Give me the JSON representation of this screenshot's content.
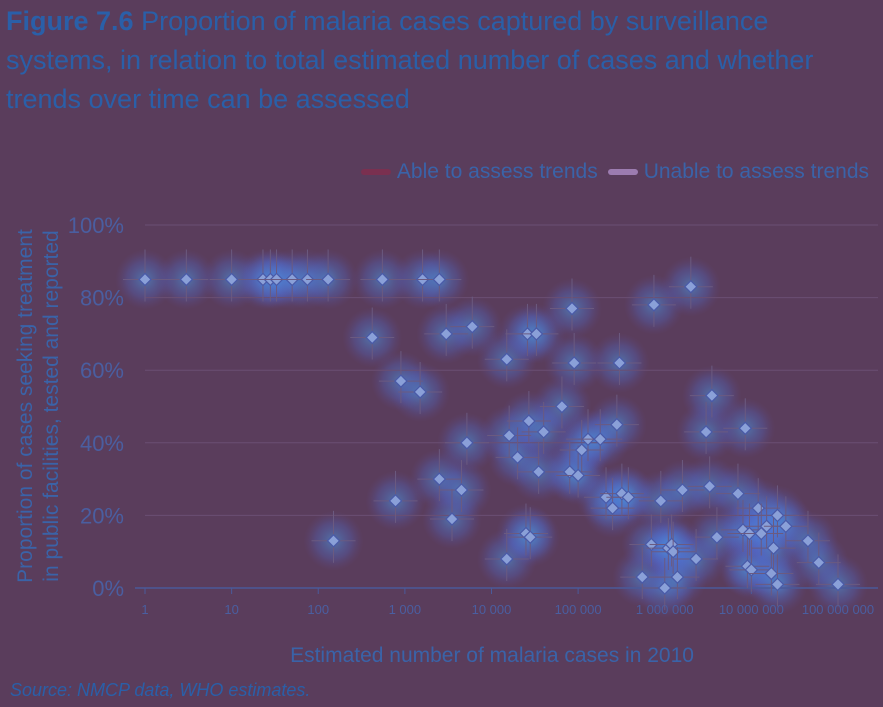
{
  "figure": {
    "label": "Figure 7.6",
    "title": "Proportion of malaria cases captured by surveillance systems, in relation to total estimated number of cases and whether trends over time can be assessed"
  },
  "source": "Source: NMCP data, WHO estimates.",
  "colors": {
    "background": "#5a3d5c",
    "title": "#2a5fa8",
    "marker_fill": "#8aa0d8",
    "marker_stroke": "#4a5aa8",
    "able_trend": "#7a3050",
    "unable_trend": "#9c7cb0"
  },
  "chart_data": {
    "type": "scatter",
    "xlabel": "Estimated number of malaria cases in 2010",
    "ylabel_lines": [
      "Proportion of cases seeking treatment",
      "in public facilities, tested and reported"
    ],
    "x_scale": "log",
    "xlim": [
      1,
      100000000
    ],
    "ylim": [
      0,
      100
    ],
    "x_ticks": [
      {
        "value": 1,
        "label": "1"
      },
      {
        "value": 10,
        "label": "10"
      },
      {
        "value": 100,
        "label": "100"
      },
      {
        "value": 1000,
        "label": "1 000"
      },
      {
        "value": 10000,
        "label": "10 000"
      },
      {
        "value": 100000,
        "label": "100 000"
      },
      {
        "value": 1000000,
        "label": "1 000 000"
      },
      {
        "value": 10000000,
        "label": "10 000 000"
      },
      {
        "value": 100000000,
        "label": "100 000 000"
      }
    ],
    "y_ticks": [
      {
        "value": 0,
        "label": "0%"
      },
      {
        "value": 20,
        "label": "20%"
      },
      {
        "value": 40,
        "label": "40%"
      },
      {
        "value": 60,
        "label": "60%"
      },
      {
        "value": 80,
        "label": "80%"
      },
      {
        "value": 100,
        "label": "100%"
      }
    ],
    "grid": true,
    "legend_position": "top-right",
    "series": [
      {
        "name": "Able to assess trends"
      },
      {
        "name": "Unable to assess trends"
      }
    ],
    "points": [
      {
        "x": 1,
        "y": 85
      },
      {
        "x": 3,
        "y": 85
      },
      {
        "x": 10,
        "y": 85
      },
      {
        "x": 23,
        "y": 85
      },
      {
        "x": 28,
        "y": 85
      },
      {
        "x": 33,
        "y": 85
      },
      {
        "x": 50,
        "y": 85
      },
      {
        "x": 75,
        "y": 85
      },
      {
        "x": 130,
        "y": 85
      },
      {
        "x": 150,
        "y": 13
      },
      {
        "x": 420,
        "y": 69
      },
      {
        "x": 550,
        "y": 85
      },
      {
        "x": 780,
        "y": 24
      },
      {
        "x": 900,
        "y": 57
      },
      {
        "x": 1500,
        "y": 54
      },
      {
        "x": 1600,
        "y": 85
      },
      {
        "x": 2500,
        "y": 85
      },
      {
        "x": 2500,
        "y": 30
      },
      {
        "x": 3000,
        "y": 70
      },
      {
        "x": 3500,
        "y": 19
      },
      {
        "x": 4500,
        "y": 27
      },
      {
        "x": 5200,
        "y": 40
      },
      {
        "x": 6000,
        "y": 72
      },
      {
        "x": 15000,
        "y": 8
      },
      {
        "x": 15000,
        "y": 63
      },
      {
        "x": 16000,
        "y": 42
      },
      {
        "x": 20000,
        "y": 36
      },
      {
        "x": 25000,
        "y": 15
      },
      {
        "x": 26000,
        "y": 70
      },
      {
        "x": 27000,
        "y": 46
      },
      {
        "x": 28000,
        "y": 14
      },
      {
        "x": 33000,
        "y": 70
      },
      {
        "x": 35000,
        "y": 32
      },
      {
        "x": 40000,
        "y": 43
      },
      {
        "x": 65000,
        "y": 50
      },
      {
        "x": 80000,
        "y": 32
      },
      {
        "x": 85000,
        "y": 77
      },
      {
        "x": 90000,
        "y": 62
      },
      {
        "x": 100000,
        "y": 31
      },
      {
        "x": 110000,
        "y": 38
      },
      {
        "x": 130000,
        "y": 41
      },
      {
        "x": 180000,
        "y": 41
      },
      {
        "x": 210000,
        "y": 25
      },
      {
        "x": 250000,
        "y": 22
      },
      {
        "x": 280000,
        "y": 45
      },
      {
        "x": 300000,
        "y": 62
      },
      {
        "x": 320000,
        "y": 26
      },
      {
        "x": 380000,
        "y": 25
      },
      {
        "x": 550000,
        "y": 3
      },
      {
        "x": 700000,
        "y": 12
      },
      {
        "x": 750000,
        "y": 78
      },
      {
        "x": 900000,
        "y": 24
      },
      {
        "x": 1000000,
        "y": 0
      },
      {
        "x": 1100000,
        "y": 11
      },
      {
        "x": 1200000,
        "y": 12
      },
      {
        "x": 1250000,
        "y": 10
      },
      {
        "x": 1400000,
        "y": 3
      },
      {
        "x": 1600000,
        "y": 27
      },
      {
        "x": 2000000,
        "y": 83
      },
      {
        "x": 2300000,
        "y": 8
      },
      {
        "x": 3000000,
        "y": 43
      },
      {
        "x": 3300000,
        "y": 28
      },
      {
        "x": 3500000,
        "y": 53
      },
      {
        "x": 4000000,
        "y": 14
      },
      {
        "x": 7000000,
        "y": 26
      },
      {
        "x": 8000000,
        "y": 16
      },
      {
        "x": 8500000,
        "y": 44
      },
      {
        "x": 9000000,
        "y": 6
      },
      {
        "x": 9500000,
        "y": 15
      },
      {
        "x": 10000000,
        "y": 5
      },
      {
        "x": 12000000,
        "y": 22
      },
      {
        "x": 13000000,
        "y": 15
      },
      {
        "x": 15000000,
        "y": 17
      },
      {
        "x": 17000000,
        "y": 4
      },
      {
        "x": 18000000,
        "y": 11
      },
      {
        "x": 20000000,
        "y": 1
      },
      {
        "x": 20000000,
        "y": 20
      },
      {
        "x": 25000000,
        "y": 17
      },
      {
        "x": 45000000,
        "y": 13
      },
      {
        "x": 60000000,
        "y": 7
      },
      {
        "x": 100000000,
        "y": 1
      }
    ]
  }
}
